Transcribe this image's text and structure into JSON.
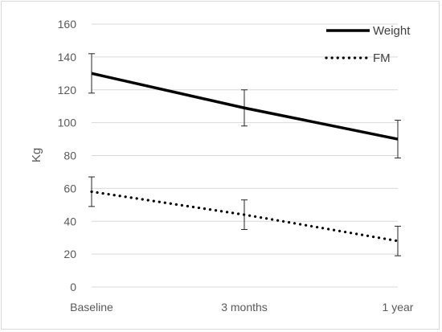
{
  "chart_data": {
    "type": "line",
    "title": "",
    "xlabel": "",
    "ylabel": "Kg",
    "categories": [
      "Baseline",
      "3 months",
      "1 year"
    ],
    "ylim": [
      0,
      160
    ],
    "yticks": [
      0,
      20,
      40,
      60,
      80,
      100,
      120,
      140,
      160
    ],
    "grid": true,
    "legend_position": "top-right",
    "series": [
      {
        "name": "Weight",
        "values": [
          130,
          109,
          90
        ],
        "error": [
          12,
          11,
          11.5
        ],
        "style": "solid",
        "color": "#000000"
      },
      {
        "name": "FM",
        "values": [
          58,
          44,
          28
        ],
        "error": [
          9,
          9,
          9
        ],
        "style": "dotted",
        "color": "#000000"
      }
    ]
  }
}
